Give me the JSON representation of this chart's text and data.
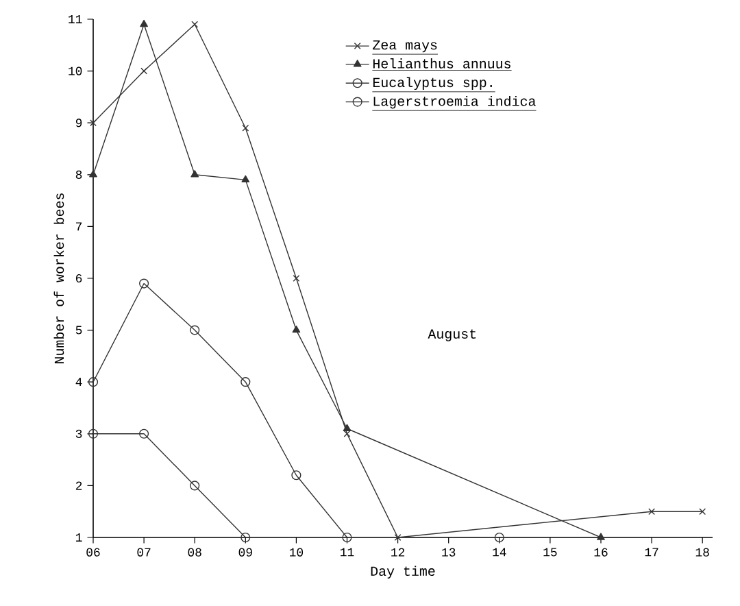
{
  "chart_data": {
    "type": "line",
    "xlabel": "Day time",
    "ylabel": "Number of worker bees",
    "annotations": [
      "August"
    ],
    "xlim": [
      6,
      18.2
    ],
    "ylim": [
      1,
      11
    ],
    "xticks": [
      {
        "value": 6,
        "label": "06"
      },
      {
        "value": 7,
        "label": "07"
      },
      {
        "value": 8,
        "label": "08"
      },
      {
        "value": 9,
        "label": "09"
      },
      10,
      11,
      12,
      13,
      14,
      15,
      16,
      17,
      18
    ],
    "yticks": [
      1,
      2,
      3,
      4,
      5,
      6,
      7,
      8,
      9,
      10,
      11
    ],
    "legend": "top right",
    "grid": false,
    "series": [
      {
        "name": "Zea mays",
        "color": "#333333",
        "marker": "cross",
        "x": [
          6,
          7,
          8,
          9,
          10,
          11,
          12,
          17,
          18
        ],
        "values": [
          9,
          10,
          10.9,
          8.9,
          6,
          3,
          1,
          1.5,
          1.5
        ]
      },
      {
        "name": "Helianthus annuus",
        "color": "#333333",
        "marker": "triangle",
        "x": [
          6,
          7,
          8,
          9,
          10,
          11,
          16
        ],
        "values": [
          8,
          10.9,
          8,
          7.9,
          5,
          3.1,
          1
        ]
      },
      {
        "name": "Eucalyptus spp.",
        "color": "#333333",
        "marker": "circle",
        "x": [
          6,
          7,
          8,
          9,
          10,
          11
        ],
        "values": [
          4,
          5.9,
          5,
          4,
          2.2,
          1
        ]
      },
      {
        "name": "Lagerstroemia indica",
        "color": "#333333",
        "marker": "circle",
        "x": [
          6,
          7,
          8,
          9,
          10,
          11,
          12,
          13,
          14
        ],
        "values": [
          3,
          3,
          2,
          1,
          null,
          null,
          null,
          null,
          1
        ]
      }
    ]
  }
}
